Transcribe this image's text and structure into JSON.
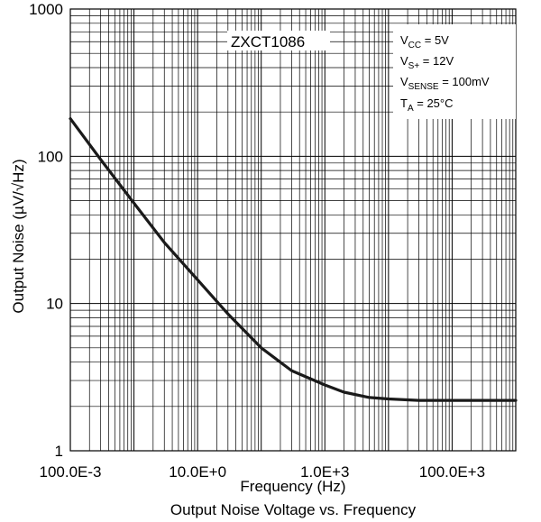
{
  "chart_data": {
    "type": "line",
    "xscale": "log",
    "yscale": "log",
    "xlim": [
      0.1,
      1000000
    ],
    "ylim": [
      1,
      1000
    ],
    "x_tick_labels": [
      "100.0E-3",
      "10.0E+0",
      "1.0E+3",
      "100.0E+3"
    ],
    "y_tick_labels": [
      "1",
      "10",
      "100",
      "1000"
    ],
    "xlabel": "Frequency (Hz)",
    "ylabel": "Output Noise (µV/√Hz)",
    "caption": "Output Noise Voltage vs. Frequency",
    "grid": true,
    "device_label": "ZXCT1086",
    "conditions": [
      {
        "main": "V",
        "sub": "CC",
        "rest": " = 5V"
      },
      {
        "main": "V",
        "sub": "S+",
        "rest": " = 12V"
      },
      {
        "main": "V",
        "sub": "SENSE",
        "rest": " = 100mV"
      },
      {
        "main": "T",
        "sub": "A",
        "rest": " = 25°C"
      }
    ],
    "series": [
      {
        "x": [
          0.1,
          0.3,
          1,
          3,
          10,
          30,
          100,
          300,
          1000,
          2000,
          5000,
          10000,
          30000,
          100000,
          1000000
        ],
        "y": [
          180,
          95,
          48,
          26,
          14.5,
          8.5,
          5.0,
          3.5,
          2.8,
          2.5,
          2.3,
          2.25,
          2.2,
          2.2,
          2.2
        ]
      }
    ],
    "line_color": "#1a1a1a"
  }
}
